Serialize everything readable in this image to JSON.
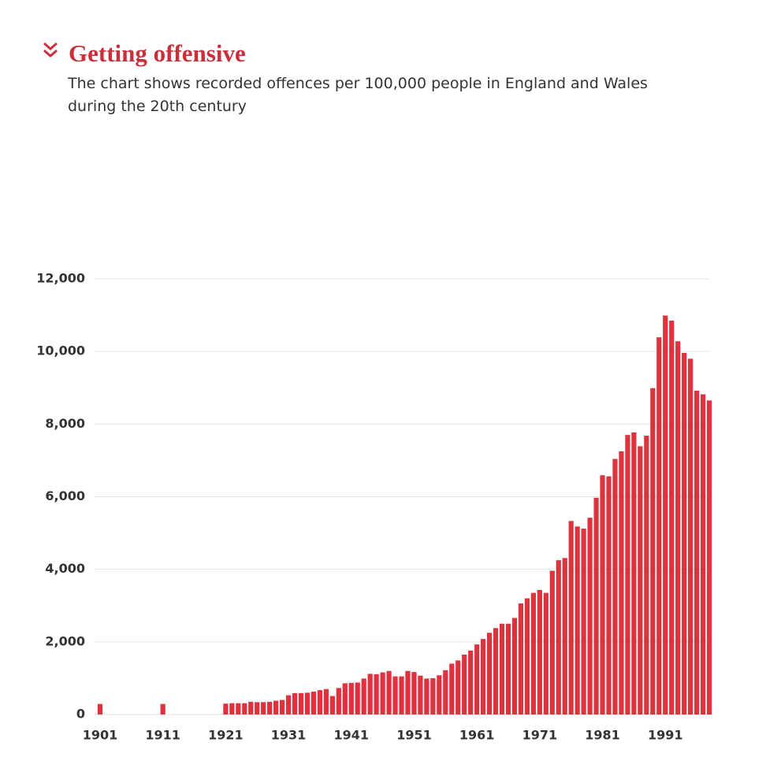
{
  "chart_data": {
    "type": "bar",
    "title": "Getting offensive",
    "subtitle": "The chart shows recorded offences per 100,000 people in England and Wales during the 20th century",
    "color": "#e0323d",
    "grid": true,
    "x": [
      1901,
      1911,
      1921,
      1922,
      1923,
      1924,
      1925,
      1926,
      1927,
      1928,
      1929,
      1930,
      1931,
      1932,
      1933,
      1934,
      1935,
      1936,
      1937,
      1938,
      1939,
      1940,
      1941,
      1942,
      1943,
      1944,
      1945,
      1946,
      1947,
      1948,
      1949,
      1950,
      1951,
      1952,
      1953,
      1954,
      1955,
      1956,
      1957,
      1958,
      1959,
      1960,
      1961,
      1962,
      1963,
      1964,
      1965,
      1966,
      1967,
      1968,
      1969,
      1970,
      1971,
      1972,
      1973,
      1974,
      1975,
      1976,
      1977,
      1978,
      1979,
      1980,
      1981,
      1982,
      1983,
      1984,
      1985,
      1986,
      1987,
      1988,
      1989,
      1990,
      1991,
      1992,
      1993,
      1994,
      1995,
      1996,
      1997,
      1998
    ],
    "values": [
      290,
      290,
      300,
      310,
      310,
      310,
      350,
      340,
      340,
      350,
      380,
      400,
      530,
      590,
      590,
      600,
      630,
      670,
      700,
      510,
      730,
      860,
      870,
      880,
      990,
      1120,
      1110,
      1160,
      1200,
      1050,
      1050,
      1200,
      1170,
      1070,
      990,
      1000,
      1080,
      1220,
      1400,
      1490,
      1650,
      1760,
      1930,
      2080,
      2250,
      2380,
      2500,
      2500,
      2660,
      3060,
      3200,
      3350,
      3430,
      3350,
      3960,
      4250,
      4310,
      5330,
      5180,
      5120,
      5420,
      5970,
      6590,
      6560,
      7040,
      7250,
      7700,
      7770,
      7390,
      7680,
      8990,
      10390,
      10990,
      10850,
      10280,
      9960,
      9800,
      8920,
      8820,
      8650
    ],
    "xlim": [
      1900,
      1999
    ],
    "xticks": [
      1901,
      1911,
      1921,
      1931,
      1941,
      1951,
      1961,
      1971,
      1981,
      1991
    ],
    "ylim": [
      0,
      12000
    ],
    "yticks": [
      0,
      {
        "value": 2000,
        "label": "2,000"
      },
      {
        "value": 4000,
        "label": "4,000"
      },
      {
        "value": 6000,
        "label": "6,000"
      },
      {
        "value": 8000,
        "label": "8,000"
      },
      {
        "value": 10000,
        "label": "10,000"
      },
      {
        "value": 12000,
        "label": "12,000"
      }
    ]
  }
}
